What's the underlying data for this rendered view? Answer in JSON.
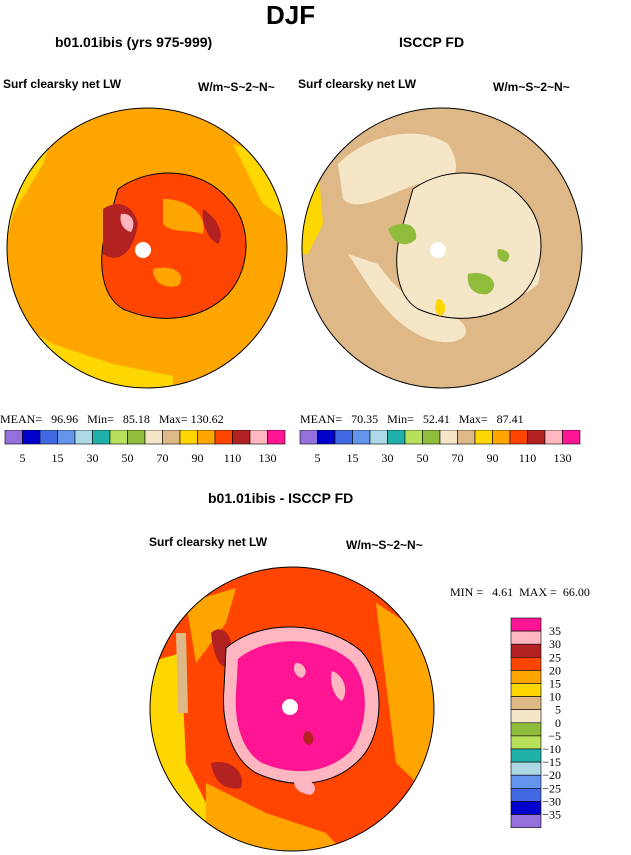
{
  "season": "DJF",
  "left_panel": {
    "title": "b01.01ibis (yrs 975-999)",
    "variable": "Surf clearsky net LW",
    "units": "W/m~S~2~N~",
    "stats": {
      "mean_label": "MEAN=",
      "mean": "96.96",
      "min_label": "Min=",
      "min": "85.18",
      "max_label": "Max=",
      "max": "130.62"
    }
  },
  "right_panel": {
    "title": "ISCCP FD",
    "variable": "Surf clearsky net LW",
    "units": "W/m~S~2~N~",
    "stats": {
      "mean_label": "MEAN=",
      "mean": "70.35",
      "min_label": "Min=",
      "min": "52.41",
      "max_label": "Max=",
      "max": "87.41"
    }
  },
  "diff_panel": {
    "title": "b01.01ibis - ISCCP FD",
    "variable": "Surf clearsky net LW",
    "units": "W/m~S~2~N~",
    "stats": {
      "min_label": "MIN =",
      "min": "4.61",
      "max_label": "MAX =",
      "max": "66.00"
    }
  },
  "colorbar_abs": {
    "colors": [
      "#9370db",
      "#0000cd",
      "#4169e1",
      "#6495ed",
      "#add8e6",
      "#20b2aa",
      "#b8e05a",
      "#8fbc3a",
      "#f5e6c8",
      "#deb887",
      "#ffd700",
      "#ffa500",
      "#ff4500",
      "#b22222",
      "#ffb6c1",
      "#ff1493"
    ],
    "tick_labels": [
      "5",
      "15",
      "30",
      "50",
      "70",
      "90",
      "110",
      "130"
    ]
  },
  "colorbar_diff": {
    "colors": [
      "#ff1493",
      "#ffb6c1",
      "#b22222",
      "#ff4500",
      "#ffa500",
      "#ffd700",
      "#deb887",
      "#f5e6c8",
      "#8fbc3a",
      "#b8e05a",
      "#20b2aa",
      "#add8e6",
      "#6495ed",
      "#4169e1",
      "#0000cd",
      "#9370db"
    ],
    "tick_labels": [
      "35",
      "30",
      "25",
      "20",
      "15",
      "10",
      "5",
      "0",
      "−5",
      "−10",
      "−15",
      "−20",
      "−25",
      "−30",
      "−35"
    ]
  },
  "map_colors": {
    "ocean_left": "#ffa500",
    "ocean_right": "#deb887",
    "ocean_diff": "#ff4500",
    "coast": "#000000"
  }
}
